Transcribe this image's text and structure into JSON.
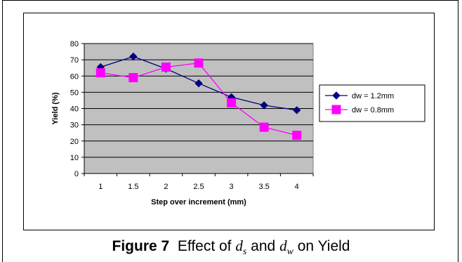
{
  "chart_data": {
    "type": "line",
    "categories": [
      "1",
      "1.5",
      "2",
      "2.5",
      "3",
      "3.5",
      "4"
    ],
    "series": [
      {
        "name": "dw = 1.2mm",
        "values": [
          65.5,
          72,
          64.5,
          55.5,
          47,
          42,
          39
        ],
        "color": "#000080",
        "marker": "diamond"
      },
      {
        "name": "dw = 0.8mm",
        "values": [
          62,
          59,
          65.5,
          68,
          43.5,
          28.5,
          23.5
        ],
        "color": "#ff00ff",
        "marker": "square"
      }
    ],
    "xlabel": "Step over increment (mm)",
    "ylabel": "Yield (%)",
    "ylim": [
      0,
      80
    ],
    "yticks": [
      0,
      10,
      20,
      30,
      40,
      50,
      60,
      70,
      80
    ],
    "grid": true,
    "plot_background": "#c0c0c0",
    "legend_position": "right"
  },
  "caption": {
    "figure": "Figure 7",
    "text1": "Effect of",
    "var1": "d",
    "sub1": "s",
    "text2": "and",
    "var2": "d",
    "sub2": "w",
    "text3": "on Yield"
  }
}
